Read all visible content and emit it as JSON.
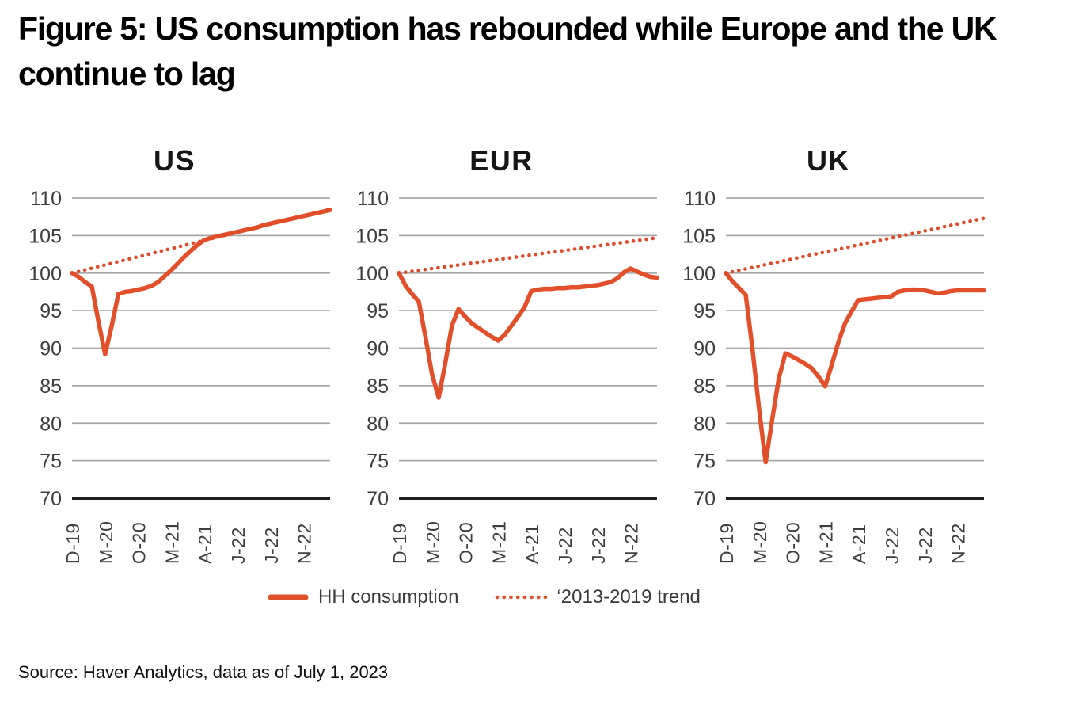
{
  "figure": {
    "title_lines": [
      "Figure 5: US consumption has rebounded while Europe and the UK",
      "continue to lag"
    ],
    "source": "Source: Haver Analytics, data as of July 1, 2023"
  },
  "legend": {
    "series1_label": "HH consumption",
    "series2_label": "‘2013-2019 trend"
  },
  "colors": {
    "line": "#E2502B",
    "trend": "#DE4B28",
    "grid": "#A8A8A8",
    "axis": "#1F1F1F",
    "text": "#3E3E3E"
  },
  "chart_data": [
    {
      "type": "line",
      "title": "US",
      "ylim": [
        70,
        110
      ],
      "ytick_step": 5,
      "tick_labels": [
        "D-19",
        "M-20",
        "O-20",
        "M-21",
        "A-21",
        "J-22",
        "J-22",
        "N-22"
      ],
      "tick_indices": [
        0,
        5,
        10,
        15,
        20,
        25,
        30,
        35
      ],
      "grid": true,
      "legend_position": "below-shared",
      "series": [
        {
          "name": "HH consumption",
          "style": "solid",
          "values": [
            100,
            99.5,
            98.8,
            98.2,
            93.5,
            89.2,
            93.0,
            97.2,
            97.5,
            97.6,
            97.8,
            98.0,
            98.3,
            98.8,
            99.6,
            100.4,
            101.3,
            102.2,
            103.0,
            103.8,
            104.4,
            104.7,
            104.9,
            105.1,
            105.3,
            105.5,
            105.7,
            105.9,
            106.1,
            106.4,
            106.6,
            106.8,
            107.0,
            107.2,
            107.4,
            107.6,
            107.8,
            108.0,
            108.2,
            108.4
          ]
        },
        {
          "name": "2013-2019 trend",
          "style": "dotted",
          "values_endpoints": [
            100,
            108.5
          ]
        }
      ]
    },
    {
      "type": "line",
      "title": "EUR",
      "ylim": [
        70,
        110
      ],
      "ytick_step": 5,
      "tick_labels": [
        "D-19",
        "M-20",
        "O-20",
        "M-21",
        "A-21",
        "J-22",
        "J-22",
        "N-22"
      ],
      "tick_indices": [
        0,
        5,
        10,
        15,
        20,
        25,
        30,
        35
      ],
      "grid": true,
      "legend_position": "below-shared",
      "series": [
        {
          "name": "HH consumption",
          "style": "solid",
          "values": [
            100,
            98.3,
            97.2,
            96.2,
            91.5,
            86.5,
            83.4,
            88.0,
            93.0,
            95.2,
            94.2,
            93.3,
            92.7,
            92.1,
            91.5,
            91.0,
            91.8,
            93.0,
            94.2,
            95.5,
            97.6,
            97.8,
            97.9,
            97.9,
            98.0,
            98.0,
            98.1,
            98.1,
            98.2,
            98.3,
            98.4,
            98.6,
            98.8,
            99.3,
            100.1,
            100.6,
            100.2,
            99.8,
            99.5,
            99.4
          ]
        },
        {
          "name": "2013-2019 trend",
          "style": "dotted",
          "values_endpoints": [
            100,
            104.7
          ]
        }
      ]
    },
    {
      "type": "line",
      "title": "UK",
      "ylim": [
        70,
        110
      ],
      "ytick_step": 5,
      "tick_labels": [
        "D-19",
        "M-20",
        "O-20",
        "M-21",
        "A-21",
        "J-22",
        "J-22",
        "N-22"
      ],
      "tick_indices": [
        0,
        5,
        10,
        15,
        20,
        25,
        30,
        35
      ],
      "grid": true,
      "legend_position": "below-shared",
      "series": [
        {
          "name": "HH consumption",
          "style": "solid",
          "values": [
            100,
            98.9,
            98.0,
            97.1,
            90.0,
            82.0,
            74.8,
            80.5,
            86.0,
            89.3,
            88.9,
            88.4,
            87.9,
            87.3,
            86.2,
            84.9,
            87.8,
            90.8,
            93.3,
            94.9,
            96.4,
            96.5,
            96.6,
            96.7,
            96.8,
            96.9,
            97.5,
            97.7,
            97.8,
            97.8,
            97.7,
            97.5,
            97.3,
            97.4,
            97.6,
            97.7,
            97.7,
            97.7,
            97.7,
            97.7
          ]
        },
        {
          "name": "2013-2019 trend",
          "style": "dotted",
          "values_endpoints": [
            100,
            107.3
          ]
        }
      ]
    }
  ]
}
